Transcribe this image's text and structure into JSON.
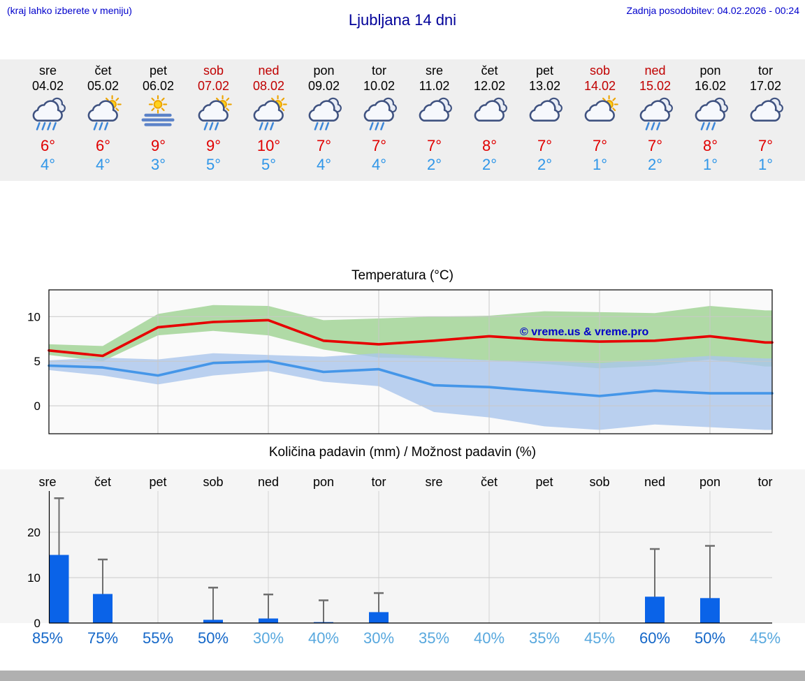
{
  "page": {
    "left_note": "(kraj lahko izberete v meniju)",
    "title": "Ljubljana 14 dni",
    "last_update": "Zadnja posodobitev: 04.02.2026 - 00:24"
  },
  "colors": {
    "note_blue": "#0000cc",
    "title_blue": "#000099",
    "weekend_red": "#c00000",
    "high_temp_red": "#e00000",
    "low_temp_blue": "#2f96e8",
    "max_temp_line": "#e60000",
    "min_temp_line": "#4596e8",
    "max_temp_band": "#b0daa6",
    "min_temp_band": "#aac5ec",
    "precip_bar": "#0a63e8",
    "whisker_gray": "#6e6e6e",
    "prob_strong": "#1467c8",
    "prob_light": "#58a8de"
  },
  "forecast_strip": {
    "days": [
      {
        "name": "sre",
        "date": "04.02",
        "weekend": false,
        "icon": "rain-heavy",
        "high": "6°",
        "low": "4°"
      },
      {
        "name": "čet",
        "date": "05.02",
        "weekend": false,
        "icon": "sun-rain",
        "high": "6°",
        "low": "4°"
      },
      {
        "name": "pet",
        "date": "06.02",
        "weekend": false,
        "icon": "sun-fog",
        "high": "9°",
        "low": "3°"
      },
      {
        "name": "sob",
        "date": "07.02",
        "weekend": true,
        "icon": "sun-rain",
        "high": "9°",
        "low": "5°"
      },
      {
        "name": "ned",
        "date": "08.02",
        "weekend": true,
        "icon": "sun-rain",
        "high": "10°",
        "low": "5°"
      },
      {
        "name": "pon",
        "date": "09.02",
        "weekend": false,
        "icon": "rain",
        "high": "7°",
        "low": "4°"
      },
      {
        "name": "tor",
        "date": "10.02",
        "weekend": false,
        "icon": "rain",
        "high": "7°",
        "low": "4°"
      },
      {
        "name": "sre",
        "date": "11.02",
        "weekend": false,
        "icon": "cloudy",
        "high": "7°",
        "low": "2°"
      },
      {
        "name": "čet",
        "date": "12.02",
        "weekend": false,
        "icon": "cloudy",
        "high": "8°",
        "low": "2°"
      },
      {
        "name": "pet",
        "date": "13.02",
        "weekend": false,
        "icon": "cloudy",
        "high": "7°",
        "low": "2°"
      },
      {
        "name": "sob",
        "date": "14.02",
        "weekend": true,
        "icon": "sun-cloud",
        "high": "7°",
        "low": "1°"
      },
      {
        "name": "ned",
        "date": "15.02",
        "weekend": true,
        "icon": "rain",
        "high": "7°",
        "low": "2°"
      },
      {
        "name": "pon",
        "date": "16.02",
        "weekend": false,
        "icon": "rain",
        "high": "8°",
        "low": "1°"
      },
      {
        "name": "tor",
        "date": "17.02",
        "weekend": false,
        "icon": "cloudy",
        "high": "7°",
        "low": "1°"
      }
    ]
  },
  "chart_data": [
    {
      "type": "line",
      "title": "Temperatura (°C)",
      "categories": [
        "sre 04.02",
        "čet 05.02",
        "pet 06.02",
        "sob 07.02",
        "ned 08.02",
        "pon 09.02",
        "tor 10.02",
        "sre 11.02",
        "čet 12.02",
        "pet 13.02",
        "sob 14.02",
        "ned 15.02",
        "pon 16.02",
        "tor 17.02"
      ],
      "ylim": [
        -3.1,
        13.0
      ],
      "yticks": [
        0,
        5,
        10
      ],
      "grid": true,
      "watermark": "© vreme.us & vreme.pro",
      "series": [
        {
          "name": "max temperature",
          "color": "#e60000",
          "values": [
            6.2,
            5.6,
            8.8,
            9.4,
            9.6,
            7.3,
            6.9,
            7.3,
            7.8,
            7.4,
            7.2,
            7.3,
            7.8,
            7.1
          ]
        },
        {
          "name": "min temperature",
          "color": "#4596e8",
          "values": [
            4.5,
            4.3,
            3.4,
            4.8,
            5.0,
            3.8,
            4.1,
            2.3,
            2.1,
            1.6,
            1.1,
            1.7,
            1.4,
            1.4
          ]
        }
      ],
      "bands": [
        {
          "name": "max temperature range",
          "color": "#b0daa6",
          "upper": [
            6.9,
            6.7,
            10.3,
            11.3,
            11.2,
            9.6,
            9.8,
            10.0,
            10.1,
            10.6,
            10.5,
            10.4,
            11.2,
            10.7
          ],
          "lower": [
            5.7,
            5.0,
            7.9,
            8.4,
            7.9,
            6.3,
            5.4,
            5.3,
            5.1,
            4.7,
            4.2,
            4.5,
            5.2,
            4.4
          ]
        },
        {
          "name": "min temperature range",
          "color": "#aac5ec",
          "upper": [
            5.1,
            5.4,
            5.2,
            5.9,
            5.7,
            5.5,
            5.9,
            5.5,
            5.1,
            5.0,
            4.8,
            5.2,
            5.6,
            5.3
          ],
          "lower": [
            4.0,
            3.4,
            2.4,
            3.4,
            3.9,
            2.7,
            2.2,
            -0.7,
            -1.3,
            -2.3,
            -2.7,
            -2.1,
            -2.4,
            -2.7
          ]
        }
      ]
    },
    {
      "type": "bar",
      "title": "Količina padavin (mm) / Možnost padavin (%)",
      "unit": "mm",
      "categories": [
        "sre",
        "čet",
        "pet",
        "sob",
        "ned",
        "pon",
        "tor",
        "sre",
        "čet",
        "pet",
        "sob",
        "ned",
        "pon",
        "tor"
      ],
      "ylim": [
        0,
        29
      ],
      "yticks": [
        0,
        10,
        20
      ],
      "bar_color": "#0a63e8",
      "values": [
        15.0,
        6.4,
        0,
        0.7,
        1.0,
        0.2,
        2.4,
        0,
        0,
        0,
        0,
        5.8,
        5.5,
        0
      ],
      "whiskers": [
        27.5,
        14.0,
        0,
        7.8,
        6.3,
        5.0,
        6.6,
        0,
        0,
        0,
        0,
        16.3,
        17.0,
        0
      ],
      "probabilities": [
        "85%",
        "75%",
        "55%",
        "50%",
        "30%",
        "40%",
        "30%",
        "35%",
        "40%",
        "35%",
        "45%",
        "60%",
        "50%",
        "45%"
      ],
      "probability_strong": [
        true,
        true,
        true,
        true,
        false,
        false,
        false,
        false,
        false,
        false,
        false,
        true,
        true,
        false
      ]
    }
  ]
}
